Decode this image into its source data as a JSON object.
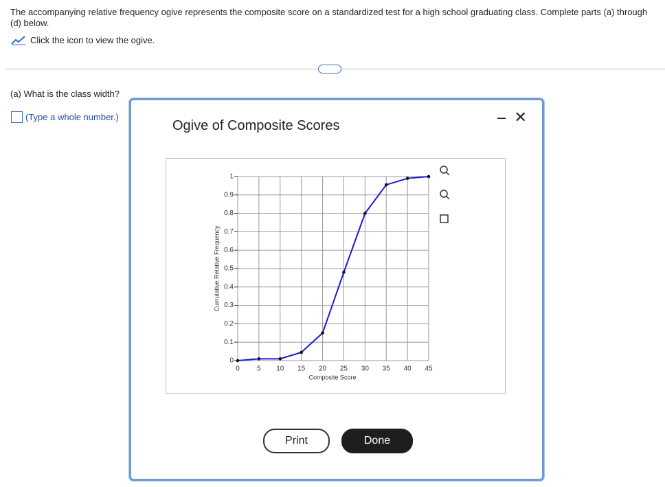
{
  "header": {
    "instructions": "The accompanying relative frequency ogive represents the composite score on a standardized test for a high school graduating class. Complete parts (a) through (d) below.",
    "link_text": "Click the icon to view the ogive."
  },
  "question": {
    "label": "(a) What is the class width?",
    "hint": "(Type a whole number.)"
  },
  "dialog": {
    "print": "Print",
    "done": "Done"
  },
  "chart_data": {
    "type": "line",
    "title": "Ogive of Composite Scores",
    "x_label": "Composite Score",
    "y_label": "Cumulative Relative Frequency",
    "x": [
      0,
      5,
      10,
      15,
      20,
      25,
      30,
      35,
      40,
      45
    ],
    "values": [
      0,
      0.01,
      0.01,
      0.045,
      0.15,
      0.48,
      0.8,
      0.955,
      0.99,
      1
    ],
    "color": "#1a1adb",
    "xlim": [
      0,
      45
    ],
    "xticks": [
      0,
      5,
      10,
      15,
      20,
      25,
      30,
      35,
      40,
      45
    ],
    "ylim": [
      0,
      1
    ],
    "yticks": [
      0,
      0.1,
      0.2,
      0.3,
      0.4,
      0.5,
      0.6,
      0.7,
      0.8,
      0.9,
      1
    ],
    "grid": true
  }
}
